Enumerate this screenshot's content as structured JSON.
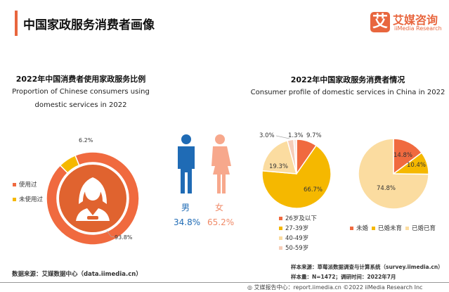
{
  "header": {
    "title": "中国家政服务消费者画像",
    "logo_mark": "艾",
    "logo_cn": "艾媒咨询",
    "logo_en": "iiMedia Research"
  },
  "colors": {
    "accent": "#e8663e",
    "red": "#f06a3f",
    "yellow": "#f5b800",
    "light": "#fbdca0",
    "pink": "#f6cdb8",
    "pale": "#f9e4da",
    "male": "#1f6bb5",
    "female": "#f7a88c",
    "donut_inner": "#e0632f"
  },
  "left": {
    "title_cn": "2022年中国消费者使用家政服务比例",
    "title_en_1": "Proportion of Chinese consumers using",
    "title_en_2": "domestic services in 2022"
  },
  "right": {
    "title_cn": "2022年中国家政服务消费者情况",
    "title_en": "Consumer profile of domestic services in China in 2022"
  },
  "chart_data": [
    {
      "type": "pie",
      "variant": "donut",
      "categories": [
        "使用过",
        "未使用过"
      ],
      "values": [
        93.8,
        6.2
      ],
      "data_labels": [
        "93.8%",
        "6.2%"
      ],
      "legend": "left",
      "icon": "woman-avatar-icon"
    },
    {
      "type": "bar",
      "variant": "pictogram",
      "categories": [
        "男",
        "女"
      ],
      "values": [
        34.8,
        65.2
      ],
      "data_labels": [
        "34.8%",
        "65.2%"
      ]
    },
    {
      "type": "pie",
      "categories": [
        "26岁及以下",
        "27-39岁",
        "40-49岁",
        "50-59岁",
        ""
      ],
      "values": [
        9.7,
        66.7,
        19.3,
        3.0,
        1.3
      ],
      "data_labels": [
        "9.7%",
        "66.7%",
        "19.3%",
        "3.0%",
        "1.3%"
      ],
      "legend": "bottom"
    },
    {
      "type": "pie",
      "categories": [
        "未婚",
        "已婚未育",
        "已婚已育"
      ],
      "values": [
        14.8,
        10.4,
        74.8
      ],
      "data_labels": [
        "14.8%",
        "10.4%",
        "74.8%"
      ],
      "legend": "bottom"
    }
  ],
  "notes": {
    "sample_source": "样本来源：草莓派数据调查与计算系统（survey.iimedia.cn）",
    "sample_size": "样本量：N=1472；调研时间：2022年7月",
    "data_source": "数据来源：艾媒数据中心（data.iimedia.cn）"
  },
  "footer": {
    "text": "艾媒报告中心：report.iimedia.cn  ©2022  iiMedia Research Inc"
  }
}
